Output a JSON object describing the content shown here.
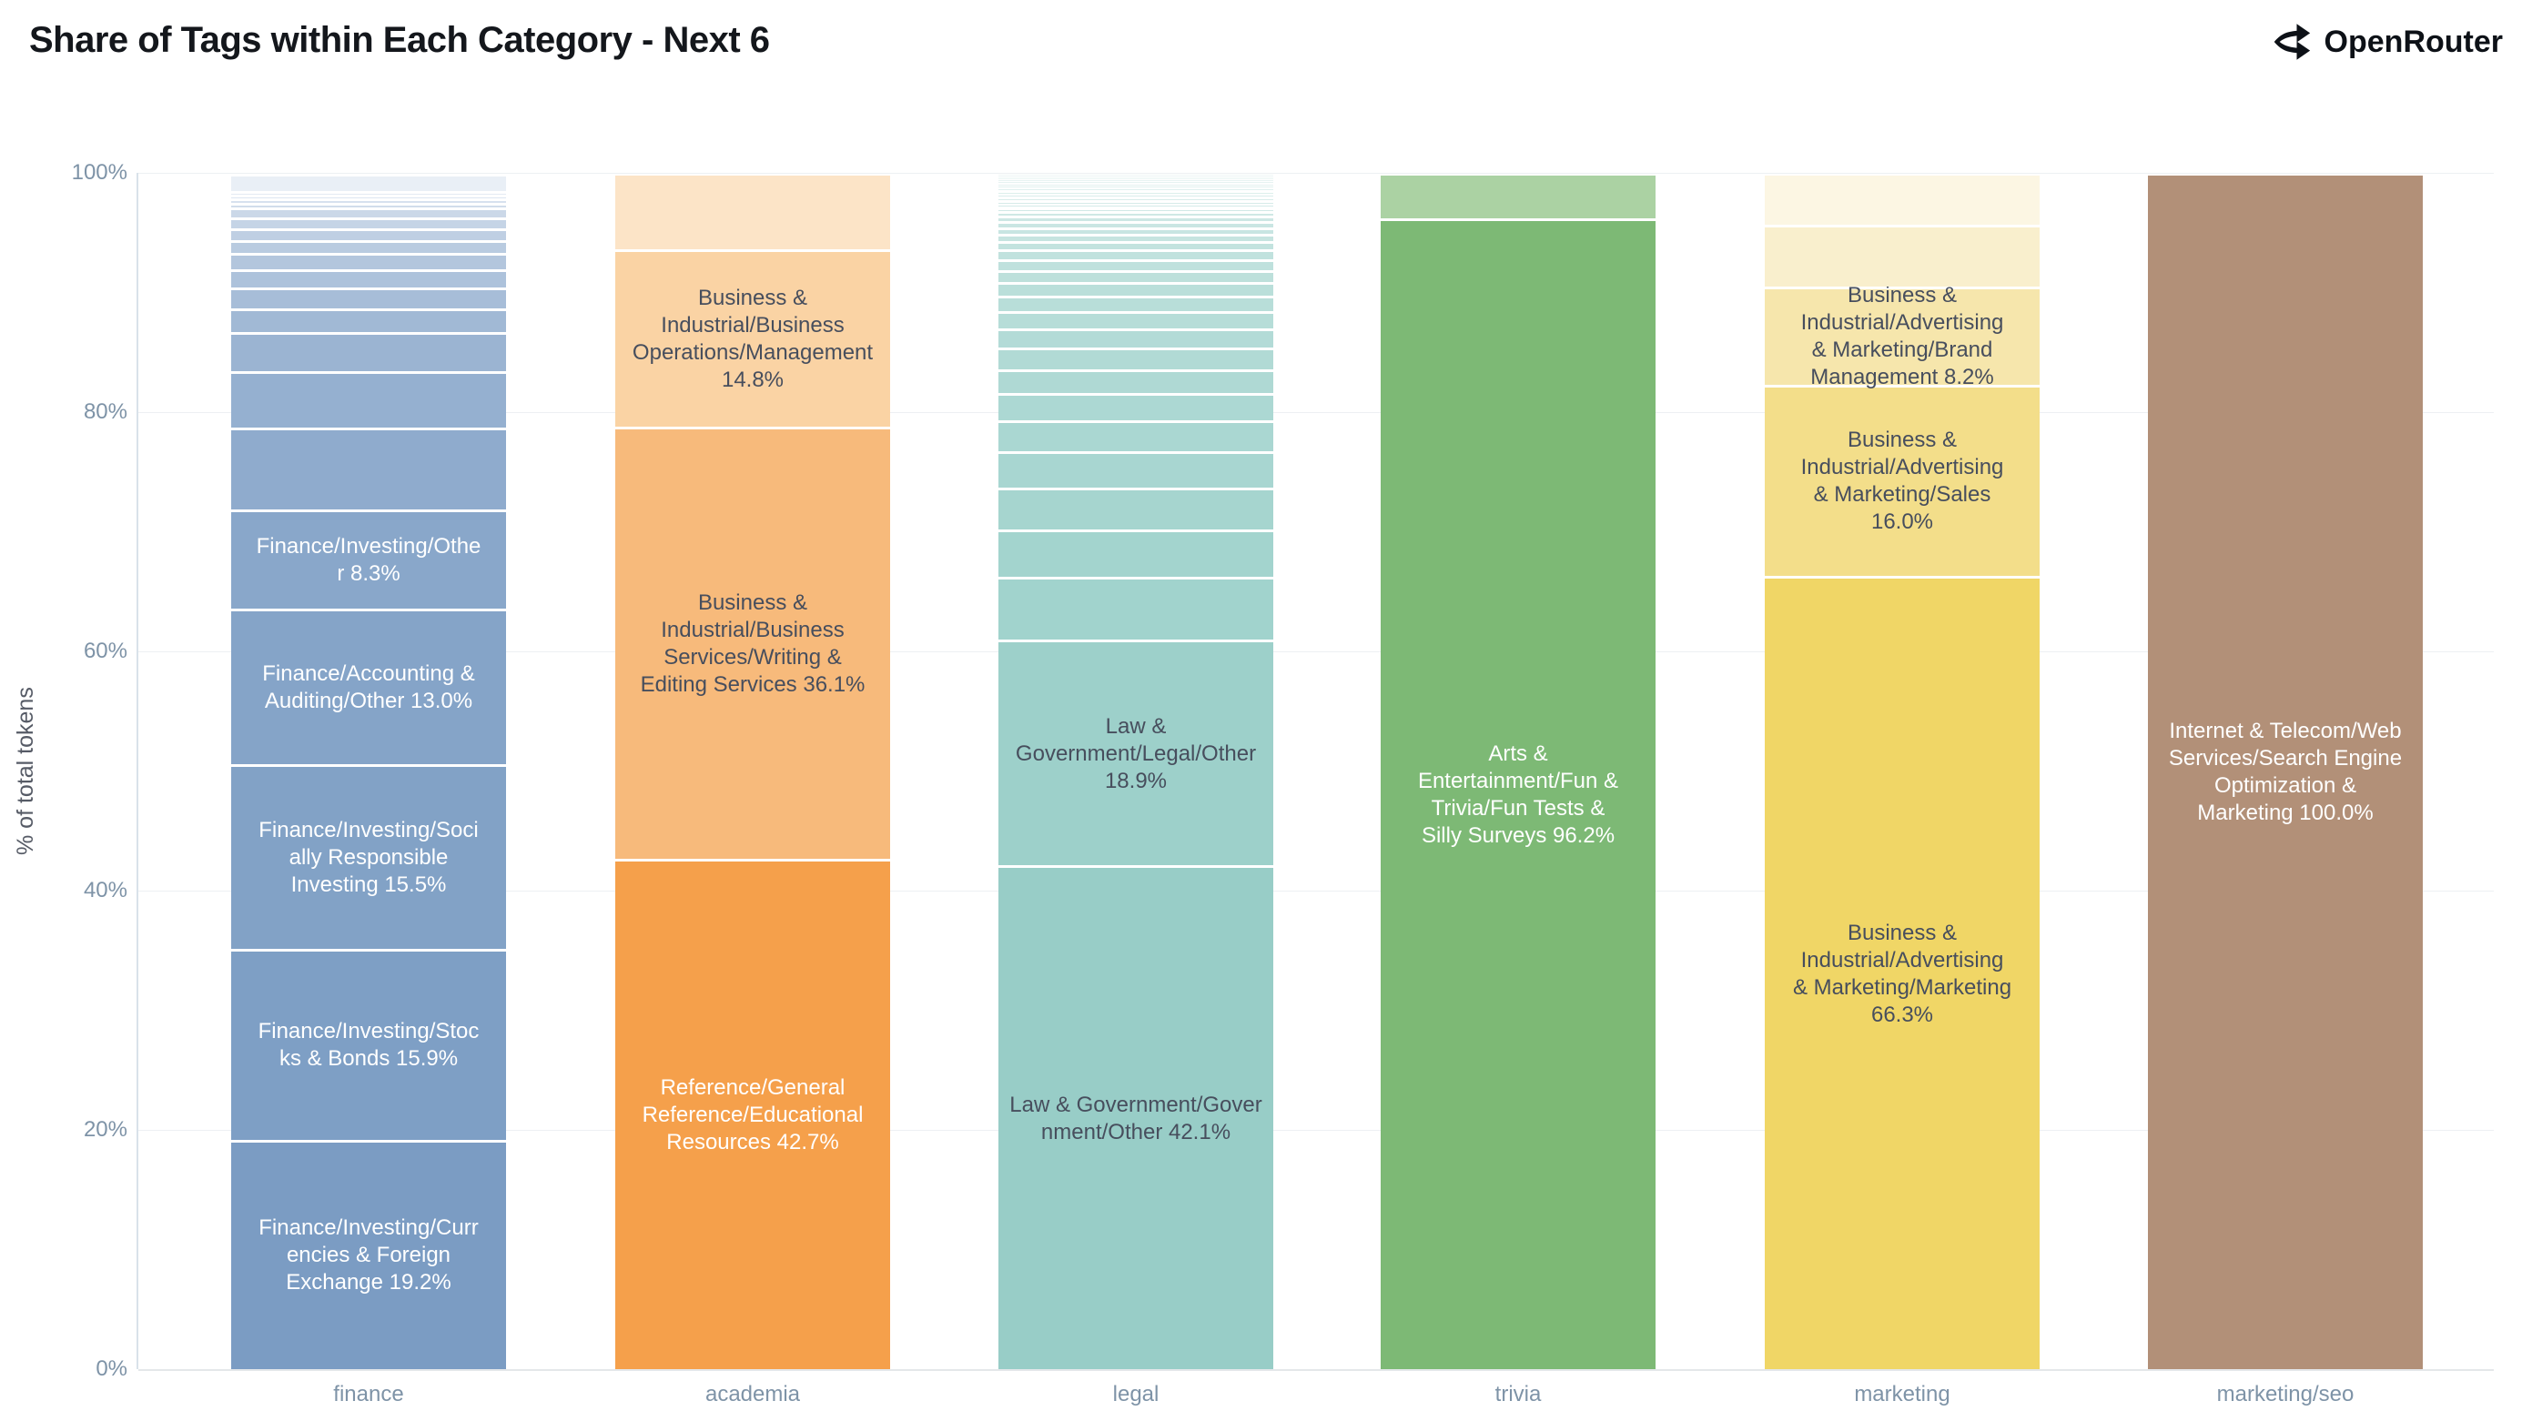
{
  "header": {
    "title": "Share of Tags within Each Category - Next 6",
    "brand": {
      "name": "OpenRouter",
      "icon": "openrouter-fork-icon"
    }
  },
  "chart_data": {
    "type": "bar",
    "subtype": "stacked-percent",
    "title": "Share of Tags within Each Category - Next 6",
    "xlabel": "",
    "ylabel": "% of total tokens",
    "ylim": [
      0,
      100
    ],
    "y_ticks": [
      "0%",
      "20%",
      "40%",
      "60%",
      "80%",
      "100%"
    ],
    "grid": true,
    "legend": false,
    "categories": [
      "finance",
      "academia",
      "legal",
      "trivia",
      "marketing",
      "marketing/seo"
    ],
    "colors": {
      "axis_text": "#7e93a7",
      "ylabel_text": "#565b66",
      "grid_line": "#edf0f3",
      "y_axis_line": "#d9e2ea",
      "x_axis_line": "#e4e7ea",
      "dark_label": "#474e5d",
      "light_label": "#ffffff"
    },
    "bars": [
      {
        "category": "finance",
        "segments": [
          {
            "label": "Finance/Investing/Curr\nencies & Foreign\nExchange 19.2%",
            "value": 19.2,
            "color": "#7b9cc3",
            "text_color": "#ffffff"
          },
          {
            "label": "Finance/Investing/Stoc\nks & Bonds 15.9%",
            "value": 15.9,
            "color": "#7e9fc5",
            "text_color": "#ffffff"
          },
          {
            "label": "Finance/Investing/Soci\nally Responsible\nInvesting 15.5%",
            "value": 15.5,
            "color": "#82a2c6",
            "text_color": "#ffffff"
          },
          {
            "label": "Finance/Accounting &\nAuditing/Other 13.0%",
            "value": 13.0,
            "color": "#85a4c8",
            "text_color": "#ffffff"
          },
          {
            "label": "Finance/Investing/Othe\nr 8.3%",
            "value": 8.3,
            "color": "#89a7ca",
            "text_color": "#ffffff"
          }
        ],
        "unlabeled_top": {
          "values": [
            6.8,
            4.7,
            3.3,
            2.0,
            1.7,
            1.55,
            1.35,
            1.1,
            1.0,
            0.9,
            0.8,
            0.4,
            0.35,
            0.33,
            0.28,
            1.5
          ],
          "color_from": "#8fabcd",
          "color_to": "#e9eff6"
        }
      },
      {
        "category": "academia",
        "segments": [
          {
            "label": "Reference/General\nReference/Educational\nResources 42.7%",
            "value": 42.7,
            "color": "#f5a04b",
            "text_color": "#ffffff"
          },
          {
            "label": "Business &\nIndustrial/Business\nServices/Writing &\nEditing Services 36.1%",
            "value": 36.1,
            "color": "#f7ba7b",
            "text_color": "#474e5d"
          },
          {
            "label": "Business &\nIndustrial/Business\nOperations/Management\n14.8%",
            "value": 14.8,
            "color": "#fad3a4",
            "text_color": "#474e5d"
          },
          {
            "label": null,
            "value": 6.4,
            "color": "#fce4c7",
            "text_color": null
          }
        ]
      },
      {
        "category": "legal",
        "segments": [
          {
            "label": "Law & Government/Gover\nnment/Other 42.1%",
            "value": 42.1,
            "color": "#98cdc7",
            "text_color": "#474e5d"
          },
          {
            "label": "Law &\nGovernment/Legal/Other\n18.9%",
            "value": 18.9,
            "color": "#9dd0ca",
            "text_color": "#474e5d"
          }
        ],
        "unlabeled_top": {
          "values": [
            5.2,
            4.0,
            3.5,
            3.0,
            2.6,
            2.3,
            2.0,
            1.8,
            1.6,
            1.45,
            1.3,
            1.15,
            1.0,
            0.9,
            0.8,
            0.7,
            0.6,
            0.55,
            0.5,
            0.45,
            0.4,
            0.35,
            0.3,
            0.3,
            0.28,
            0.26,
            0.24,
            0.22,
            0.2,
            0.19,
            0.18,
            0.17,
            0.16,
            0.15,
            0.14
          ],
          "color_from": "#a1d3cd",
          "color_to": "#eff7f6"
        }
      },
      {
        "category": "trivia",
        "segments": [
          {
            "label": "Arts &\nEntertainment/Fun &\nTrivia/Fun Tests &\nSilly Surveys 96.2%",
            "value": 96.2,
            "color": "#7db975",
            "text_color": "#ffffff"
          },
          {
            "label": null,
            "value": 3.8,
            "color": "#abd2a3",
            "text_color": null
          }
        ]
      },
      {
        "category": "marketing",
        "segments": [
          {
            "label": "Business &\nIndustrial/Advertising\n& Marketing/Marketing\n66.3%",
            "value": 66.3,
            "color": "#f0d666",
            "text_color": "#474e5d"
          },
          {
            "label": "Business &\nIndustrial/Advertising\n& Marketing/Sales\n16.0%",
            "value": 16.0,
            "color": "#f3de8a",
            "text_color": "#474e5d"
          },
          {
            "label": "Business &\nIndustrial/Advertising\n& Marketing/Brand\nManagement 8.2%",
            "value": 8.2,
            "color": "#f6e6ac",
            "text_color": "#474e5d"
          },
          {
            "label": null,
            "value": 5.2,
            "color": "#f9efcd",
            "text_color": null
          },
          {
            "label": null,
            "value": 4.3,
            "color": "#fcf6e3",
            "text_color": null
          }
        ]
      },
      {
        "category": "marketing/seo",
        "segments": [
          {
            "label": "Internet & Telecom/Web\nServices/Search Engine\nOptimization &\nMarketing 100.0%",
            "value": 100.0,
            "color": "#b29078",
            "text_color": "#ffffff"
          }
        ]
      }
    ]
  }
}
